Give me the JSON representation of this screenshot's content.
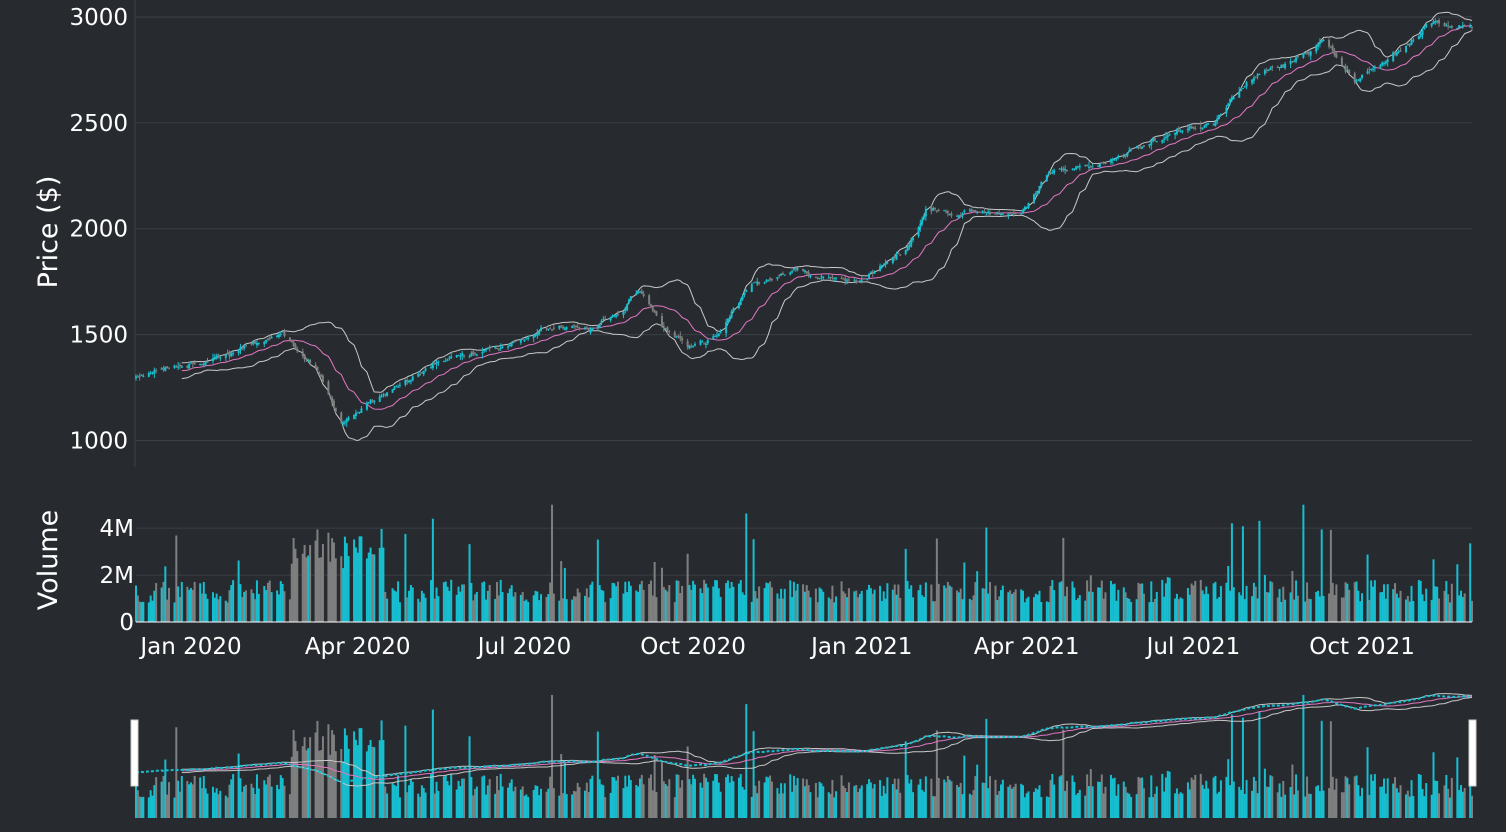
{
  "chart_data": {
    "type": "candlestick",
    "colors": {
      "up": "#17becf",
      "down": "#7f7f7f",
      "sma": "#e377c2",
      "bands": "#c8c8c8",
      "background": "#272b30",
      "grid": "#3b4046"
    },
    "price_panel": {
      "ylabel": "Price ($)",
      "yticks": [
        1000,
        1500,
        2000,
        2500,
        3000
      ],
      "ylim": [
        875,
        3080
      ],
      "bollinger_period": 20,
      "bollinger_std": 2
    },
    "volume_panel": {
      "ylabel": "Volume",
      "ytick_labels": [
        "0",
        "2M",
        "4M"
      ],
      "ytick_values": [
        0,
        2000000,
        4000000
      ],
      "ylim": [
        0,
        5200000
      ]
    },
    "x_range": [
      "2019-12-02",
      "2021-11-30"
    ],
    "xtick_labels": [
      "Jan 2020",
      "Apr 2020",
      "Jul 2020",
      "Oct 2020",
      "Jan 2021",
      "Apr 2021",
      "Jul 2021",
      "Oct 2021"
    ],
    "xtick_dates": [
      "2020-01-01",
      "2020-04-01",
      "2020-07-01",
      "2020-10-01",
      "2021-01-01",
      "2021-04-01",
      "2021-07-01",
      "2021-10-01"
    ],
    "close_anchors": [
      [
        "2019-12-02",
        1300
      ],
      [
        "2019-12-20",
        1350
      ],
      [
        "2020-01-10",
        1360
      ],
      [
        "2020-02-05",
        1470
      ],
      [
        "2020-02-20",
        1520
      ],
      [
        "2020-03-10",
        1330
      ],
      [
        "2020-03-23",
        1080
      ],
      [
        "2020-04-10",
        1200
      ],
      [
        "2020-05-15",
        1380
      ],
      [
        "2020-06-15",
        1430
      ],
      [
        "2020-07-10",
        1530
      ],
      [
        "2020-08-05",
        1520
      ],
      [
        "2020-08-20",
        1590
      ],
      [
        "2020-09-02",
        1700
      ],
      [
        "2020-09-15",
        1540
      ],
      [
        "2020-09-28",
        1440
      ],
      [
        "2020-10-15",
        1510
      ],
      [
        "2020-11-05",
        1760
      ],
      [
        "2020-12-01",
        1800
      ],
      [
        "2020-12-30",
        1740
      ],
      [
        "2021-01-25",
        1900
      ],
      [
        "2021-02-05",
        2090
      ],
      [
        "2021-02-25",
        2060
      ],
      [
        "2021-03-15",
        2050
      ],
      [
        "2021-03-29",
        2080
      ],
      [
        "2021-04-15",
        2280
      ],
      [
        "2021-05-10",
        2300
      ],
      [
        "2021-05-25",
        2360
      ],
      [
        "2021-06-15",
        2430
      ],
      [
        "2021-07-12",
        2500
      ],
      [
        "2021-07-30",
        2700
      ],
      [
        "2021-08-20",
        2780
      ],
      [
        "2021-09-10",
        2880
      ],
      [
        "2021-09-28",
        2700
      ],
      [
        "2021-10-15",
        2800
      ],
      [
        "2021-11-05",
        2960
      ],
      [
        "2021-11-30",
        2950
      ]
    ],
    "volume_typical": 1500000,
    "volume_high_period": [
      "2020-02-25",
      "2020-04-15",
      3200000
    ]
  }
}
